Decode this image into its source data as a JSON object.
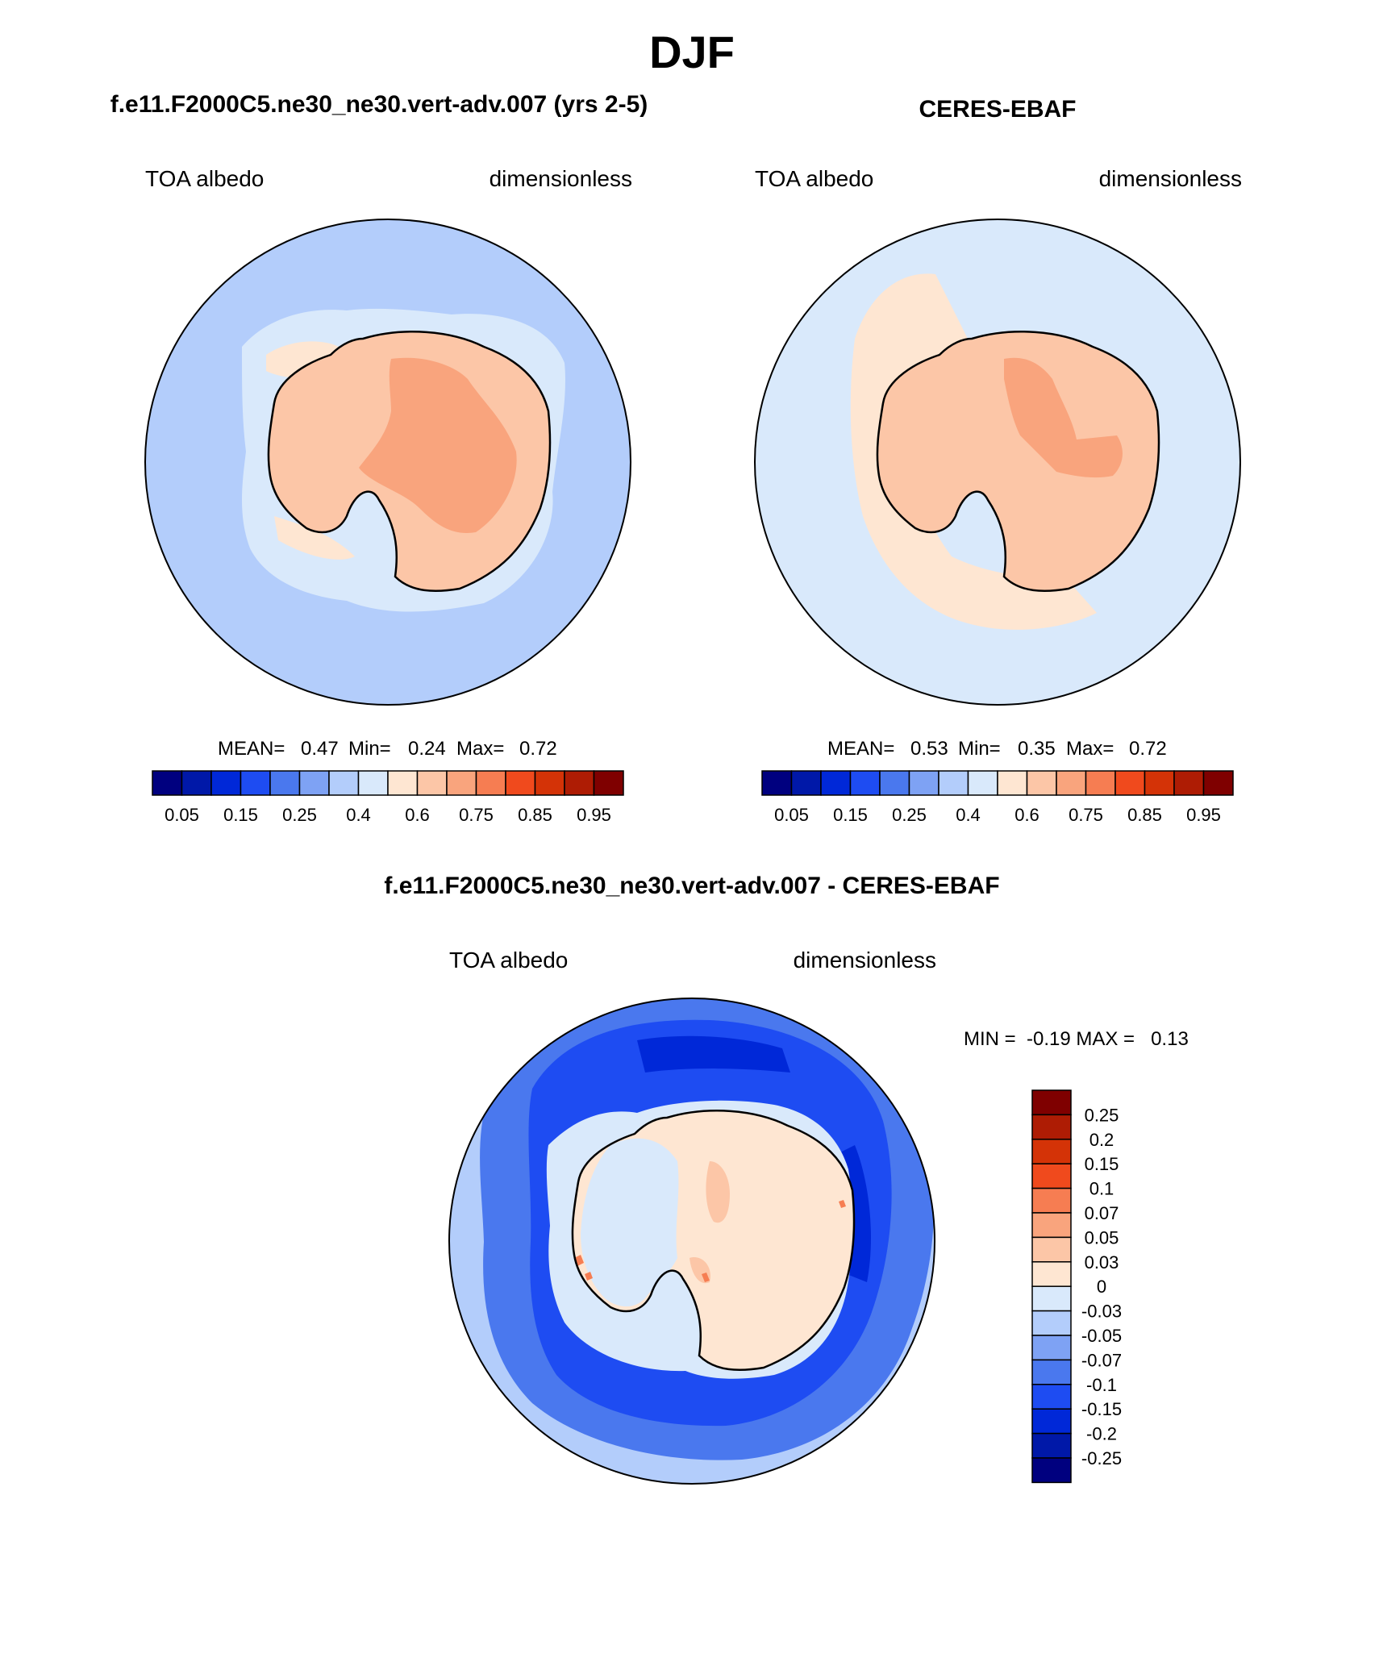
{
  "figure": {
    "title": "DJF",
    "left": {
      "title": "f.e11.F2000C5.ne30_ne30.vert-adv.007 (yrs 2-5)",
      "variable": "TOA albedo",
      "units": "dimensionless",
      "stats": {
        "mean_label": "MEAN=",
        "mean": "0.47",
        "min_label": "Min=",
        "min": "0.24",
        "max_label": "Max=",
        "max": "0.72"
      }
    },
    "right": {
      "title": "CERES-EBAF",
      "variable": "TOA albedo",
      "units": "dimensionless",
      "stats": {
        "mean_label": "MEAN=",
        "mean": "0.53",
        "min_label": "Min=",
        "min": "0.35",
        "max_label": "Max=",
        "max": "0.72"
      }
    },
    "diff": {
      "title": "f.e11.F2000C5.ne30_ne30.vert-adv.007 - CERES-EBAF",
      "variable": "TOA albedo",
      "units": "dimensionless",
      "minmax": "MIN =  -0.19 MAX =   0.13"
    }
  },
  "colorbar_abs": {
    "colors": [
      "#00007f",
      "#0018a8",
      "#0028d8",
      "#1e4cf2",
      "#4a78ee",
      "#7ea2f4",
      "#b3cdfb",
      "#d9e9fb",
      "#fee6d2",
      "#fcc6a7",
      "#f9a47d",
      "#f67d52",
      "#f04a1d",
      "#d43307",
      "#ae1c04",
      "#7f0000"
    ],
    "labels": [
      "0.05",
      "0.15",
      "0.25",
      "0.4",
      "0.6",
      "0.75",
      "0.85",
      "0.95"
    ]
  },
  "colorbar_diff": {
    "colors": [
      "#00007f",
      "#0018a8",
      "#0028d8",
      "#1e4cf2",
      "#4a78ee",
      "#7ea2f4",
      "#b3cdfb",
      "#d9e9fb",
      "#fee6d2",
      "#fcc6a7",
      "#f9a47d",
      "#f67d52",
      "#f04a1d",
      "#d43307",
      "#ae1c04",
      "#7f0000"
    ],
    "labels": [
      "0.25",
      "0.2",
      "0.15",
      "0.1",
      "0.07",
      "0.05",
      "0.03",
      "0",
      "-0.03",
      "-0.05",
      "-0.07",
      "-0.1",
      "-0.15",
      "-0.2",
      "-0.25"
    ]
  },
  "map_colors": {
    "left_ocean": "#b3cdfb",
    "left_ice": "#d9e9fb",
    "left_land": "#fcc6a7",
    "left_land_high": "#f9a47d",
    "left_band": "#fee6d2",
    "right_ocean": "#d9e9fb",
    "right_band": "#fee6d2",
    "right_land": "#fcc6a7",
    "right_land_high": "#f9a47d",
    "diff_ocean_outer": "#b3cdfb",
    "diff_ocean_mid": "#4a78ee",
    "diff_ocean_deep": "#1e4cf2",
    "diff_ocean_dark": "#0028d8",
    "diff_coast": "#d9e9fb",
    "diff_land": "#fee6d2",
    "diff_land_pos": "#fcc6a7",
    "diff_hot": "#f67d52"
  }
}
